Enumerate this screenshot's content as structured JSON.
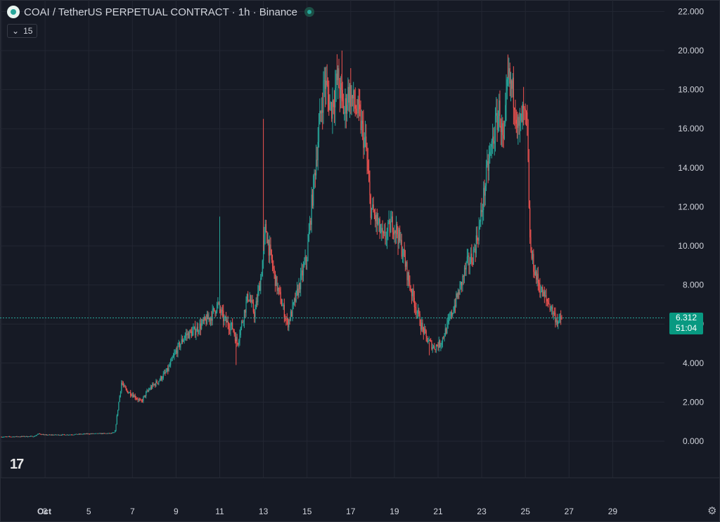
{
  "header": {
    "title": "COAI / TetherUS PERPETUAL CONTRACT · 1h · Binance",
    "indicator_value": "15"
  },
  "price_tag": {
    "price": "6.312",
    "countdown": "51:04"
  },
  "colors": {
    "up": "#26a69a",
    "down": "#ef5350",
    "background": "#161a25",
    "grid": "#232733",
    "accent": "#089981"
  },
  "chart_data": {
    "type": "candlestick",
    "interval": "1h",
    "x_ticks": [
      "Oct",
      "3",
      "5",
      "7",
      "9",
      "11",
      "13",
      "15",
      "17",
      "19",
      "21",
      "23",
      "25",
      "27",
      "29"
    ],
    "y_ticks": [
      "22.000",
      "20.000",
      "18.000",
      "16.000",
      "14.000",
      "12.000",
      "10.000",
      "8.000",
      "6.000",
      "4.000",
      "2.000",
      "0.000"
    ],
    "ylim": [
      -1.5,
      22.5
    ],
    "xlim_days": [
      1,
      30
    ],
    "last_price": 6.312,
    "close_path": [
      [
        1.0,
        0.22
      ],
      [
        2.5,
        0.25
      ],
      [
        2.7,
        0.38
      ],
      [
        3.0,
        0.32
      ],
      [
        4.0,
        0.33
      ],
      [
        5.0,
        0.38
      ],
      [
        6.0,
        0.4
      ],
      [
        6.2,
        0.45
      ],
      [
        6.35,
        1.8
      ],
      [
        6.5,
        3.0
      ],
      [
        6.7,
        2.6
      ],
      [
        7.0,
        2.4
      ],
      [
        7.4,
        2.0
      ],
      [
        7.6,
        2.4
      ],
      [
        7.8,
        2.7
      ],
      [
        8.2,
        3.1
      ],
      [
        8.6,
        3.6
      ],
      [
        9.0,
        4.6
      ],
      [
        9.4,
        5.4
      ],
      [
        9.8,
        5.6
      ],
      [
        10.2,
        6.0
      ],
      [
        10.6,
        6.4
      ],
      [
        10.9,
        7.0
      ],
      [
        11.2,
        6.2
      ],
      [
        11.6,
        5.8
      ],
      [
        11.8,
        5.0
      ],
      [
        12.1,
        6.5
      ],
      [
        12.3,
        7.5
      ],
      [
        12.6,
        6.5
      ],
      [
        12.9,
        8.5
      ],
      [
        13.1,
        11.0
      ],
      [
        13.3,
        9.6
      ],
      [
        13.6,
        8.0
      ],
      [
        13.9,
        6.8
      ],
      [
        14.1,
        6.0
      ],
      [
        14.3,
        6.6
      ],
      [
        14.6,
        7.8
      ],
      [
        15.0,
        9.5
      ],
      [
        15.2,
        12.0
      ],
      [
        15.5,
        15.5
      ],
      [
        15.8,
        18.5
      ],
      [
        16.1,
        17.0
      ],
      [
        16.4,
        18.6
      ],
      [
        16.7,
        16.8
      ],
      [
        16.9,
        18.0
      ],
      [
        17.1,
        17.4
      ],
      [
        17.4,
        16.6
      ],
      [
        17.7,
        15.0
      ],
      [
        17.9,
        12.0
      ],
      [
        18.2,
        11.2
      ],
      [
        18.5,
        10.3
      ],
      [
        18.9,
        11.2
      ],
      [
        19.1,
        10.8
      ],
      [
        19.4,
        9.6
      ],
      [
        19.7,
        8.0
      ],
      [
        19.9,
        7.2
      ],
      [
        20.2,
        6.0
      ],
      [
        20.5,
        5.2
      ],
      [
        20.8,
        4.8
      ],
      [
        21.1,
        5.0
      ],
      [
        21.4,
        5.8
      ],
      [
        21.7,
        6.8
      ],
      [
        22.0,
        7.8
      ],
      [
        22.3,
        9.0
      ],
      [
        22.6,
        9.5
      ],
      [
        22.9,
        11.0
      ],
      [
        23.2,
        13.5
      ],
      [
        23.5,
        15.4
      ],
      [
        23.8,
        17.0
      ],
      [
        24.0,
        15.0
      ],
      [
        24.2,
        18.6
      ],
      [
        24.5,
        17.6
      ],
      [
        24.7,
        15.8
      ],
      [
        24.9,
        16.8
      ],
      [
        25.1,
        16.0
      ],
      [
        25.15,
        12.0
      ],
      [
        25.25,
        9.6
      ],
      [
        25.5,
        8.4
      ],
      [
        25.8,
        7.5
      ],
      [
        26.1,
        7.0
      ],
      [
        26.35,
        6.4
      ],
      [
        26.5,
        6.1
      ],
      [
        26.7,
        6.31
      ]
    ],
    "spikes": [
      {
        "day": 11.0,
        "high": 11.5
      },
      {
        "day": 13.0,
        "high": 16.5
      },
      {
        "day": 16.6,
        "high": 20.0
      },
      {
        "day": 24.2,
        "high": 19.8
      },
      {
        "day": 11.75,
        "low": 3.9
      },
      {
        "day": 20.6,
        "low": 4.4
      }
    ]
  }
}
